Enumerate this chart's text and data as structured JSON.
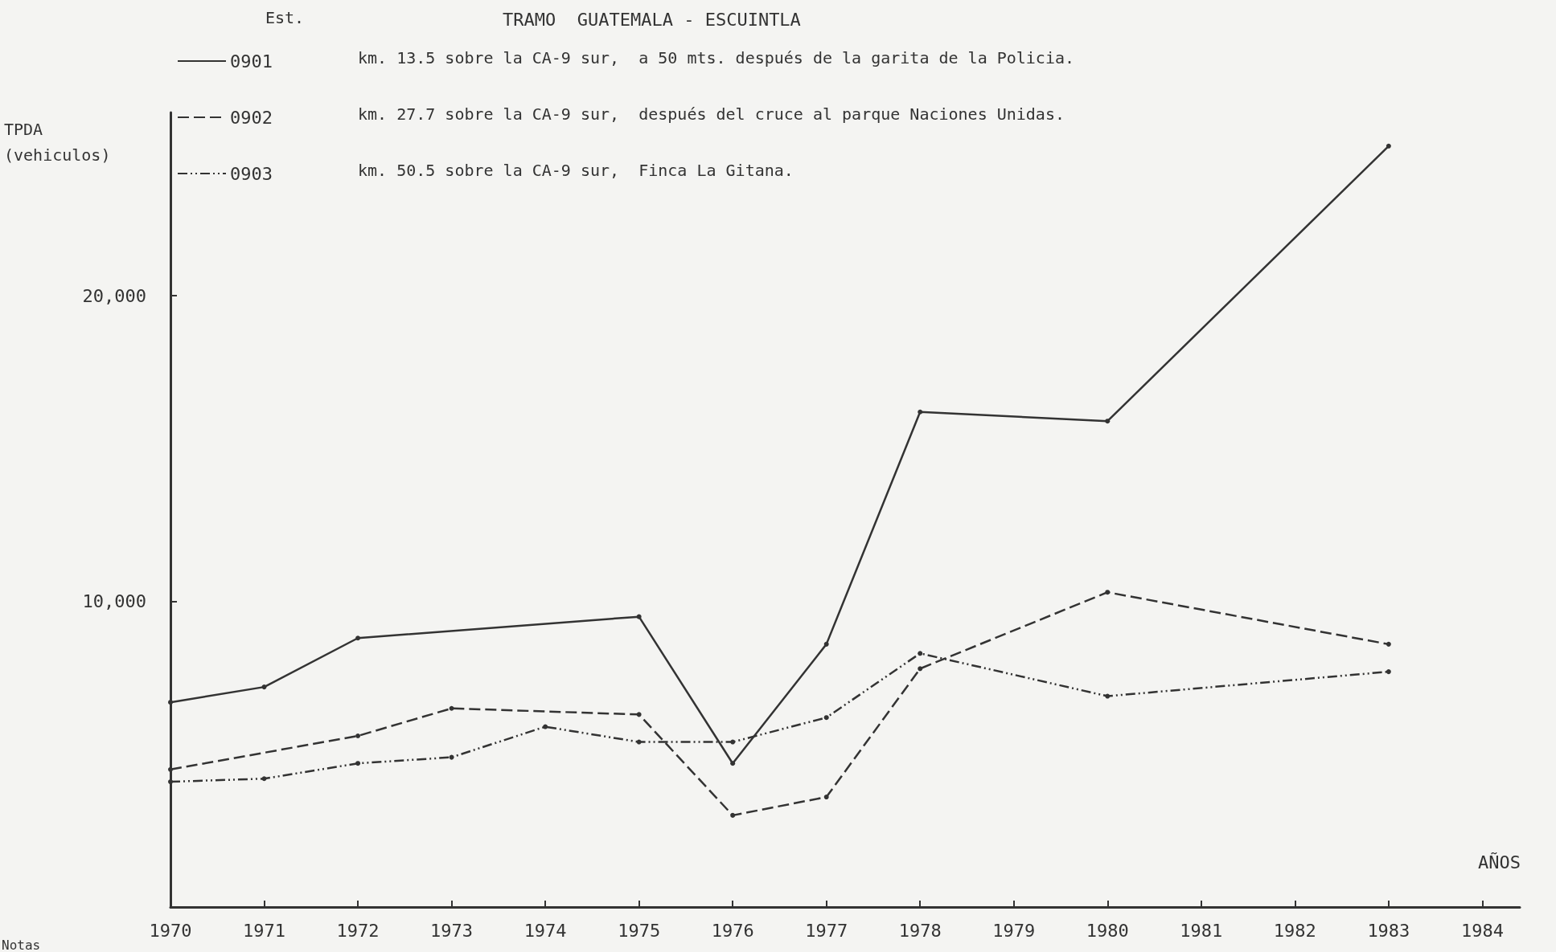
{
  "chart_data": {
    "type": "line",
    "title": "TRAMO  GUATEMALA - ESCUINTLA",
    "legend_title": "Est.",
    "xlabel": "AÑOS",
    "ylabel": "TPDA\n(vehiculos)",
    "xlim": [
      1970,
      1984.4
    ],
    "xticks": [
      1970,
      1971,
      1972,
      1973,
      1974,
      1975,
      1976,
      1977,
      1978,
      1979,
      1980,
      1981,
      1982,
      1983,
      1984
    ],
    "ylim": [
      0,
      26000
    ],
    "yticks": [
      {
        "value": 0,
        "label": null
      },
      {
        "value": 10000,
        "label": "10,000"
      },
      {
        "value": 20000,
        "label": "20,000"
      }
    ],
    "grid": false,
    "legend": "top left",
    "marker": "circle",
    "annotations": [
      "km. 13.5 sobre la CA-9 sur,  a 50 mts. después de la garita de la Policia.",
      "km. 27.7 sobre la CA-9 sur,  después del cruce al parque Naciones Unidas.",
      "km. 50.5 sobre la CA-9 sur,  Finca La Gitana.",
      "Notas"
    ],
    "series": [
      {
        "name": "0901",
        "color": "#333333",
        "line_style": "solid",
        "x": [
          1970,
          1971,
          1972,
          1975,
          1976,
          1977,
          1978,
          1980,
          1983
        ],
        "values": [
          6700,
          7200,
          8800,
          9500,
          4700,
          8600,
          16200,
          15900,
          24900
        ]
      },
      {
        "name": "0902",
        "color": "#333333",
        "line_style": "dashed",
        "x": [
          1970,
          1972,
          1973,
          1975,
          1976,
          1977,
          1978,
          1980,
          1983
        ],
        "values": [
          4500,
          5600,
          6500,
          6300,
          3000,
          3600,
          7800,
          10300,
          8600
        ]
      },
      {
        "name": "0903",
        "color": "#333333",
        "line_style": "dotted",
        "x": [
          1970,
          1971,
          1972,
          1973,
          1974,
          1975,
          1976,
          1977,
          1978,
          1980,
          1983
        ],
        "values": [
          4100,
          4200,
          4700,
          4900,
          5900,
          5400,
          5400,
          6200,
          8300,
          6900,
          7700
        ]
      }
    ]
  }
}
